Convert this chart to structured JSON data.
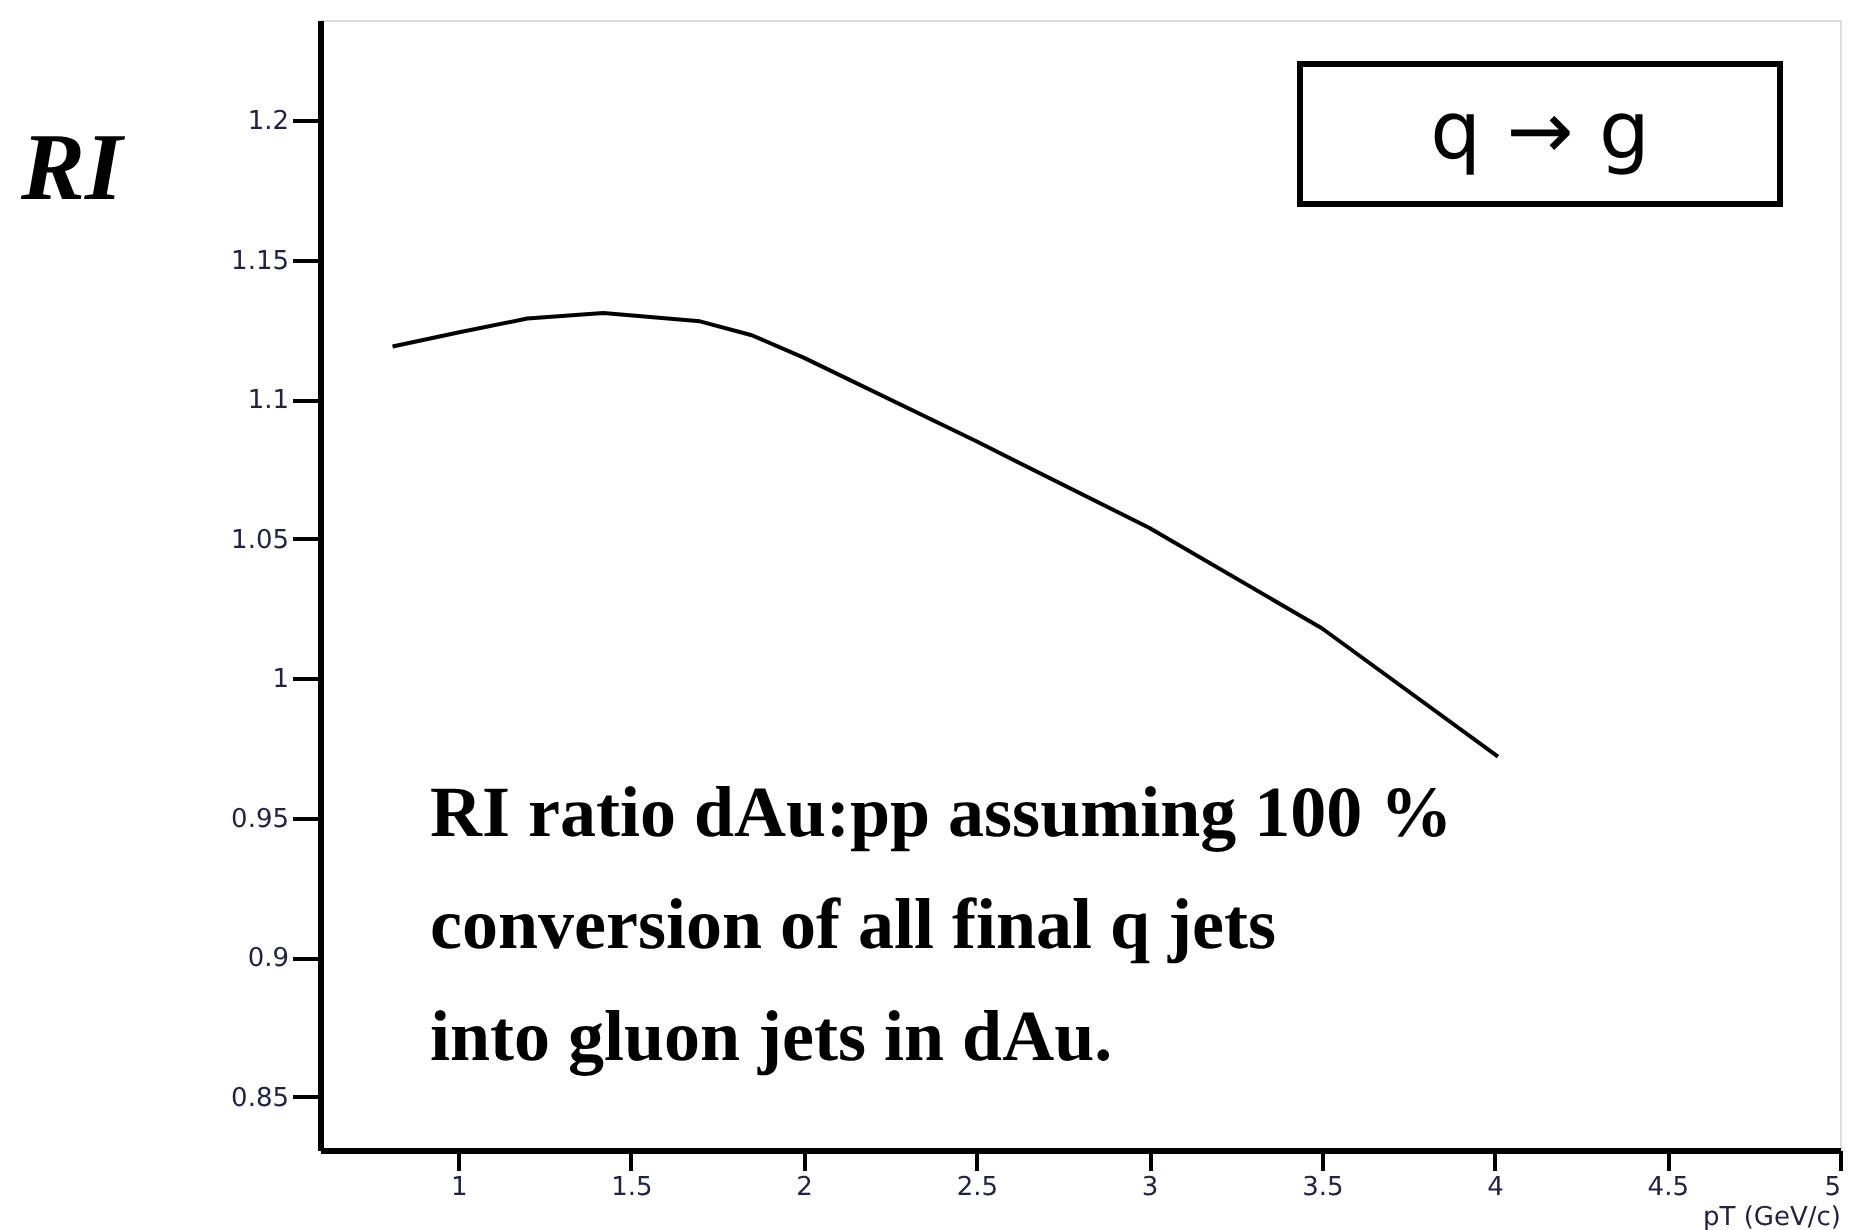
{
  "chart_data": {
    "type": "line",
    "ylabel": "RI",
    "xlabel": "pT (GeV/c)",
    "annotations": [
      "q → g",
      "RI ratio dAu:pp assuming 100 % conversion of all final q jets into gluon jets in dAu."
    ],
    "series": [
      {
        "color": "#000000",
        "x": [
          0.81,
          1.0,
          1.2,
          1.42,
          1.7,
          1.85,
          2.0,
          2.5,
          3.0,
          3.5,
          4.01
        ],
        "values": [
          1.119,
          1.124,
          1.129,
          1.131,
          1.128,
          1.123,
          1.115,
          1.085,
          1.054,
          1.018,
          0.972
        ]
      }
    ],
    "xlim": [
      0.6,
      5.0
    ],
    "xticks": [
      1,
      1.5,
      2,
      2.5,
      3,
      3.5,
      4,
      4.5,
      5
    ],
    "ylim": [
      0.831,
      1.236
    ],
    "yticks": [
      0.85,
      0.9,
      0.95,
      1,
      1.05,
      1.1,
      1.15,
      1.2
    ],
    "grid": false,
    "marker": "none",
    "line_style": "solid"
  }
}
